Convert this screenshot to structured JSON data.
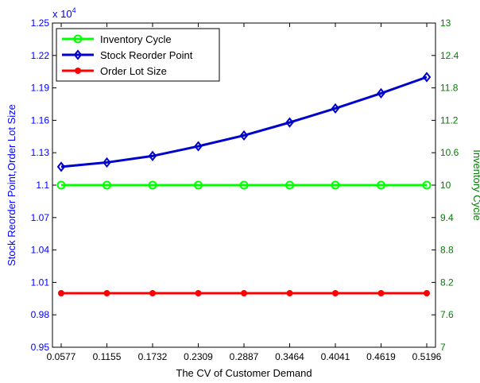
{
  "chart_data": {
    "type": "line",
    "xlabel": "The CV of Customer Demand",
    "ylabel_left": "Stock Reorder Point,Order Lot Size",
    "ylabel_right": "Inventory Cycle",
    "left_exponent_label": "x 10",
    "left_exponent_power": "4",
    "x_ticks": [
      "0.0577",
      "0.1155",
      "0.1732",
      "0.2309",
      "0.2887",
      "0.3464",
      "0.4041",
      "0.4619",
      "0.5196"
    ],
    "x": [
      0.0577,
      0.1155,
      0.1732,
      0.2309,
      0.2887,
      0.3464,
      0.4041,
      0.4619,
      0.5196
    ],
    "left_axis": {
      "range": [
        0.95,
        1.25
      ],
      "ticks": [
        "0.95",
        "0.98",
        "1.01",
        "1.04",
        "1.07",
        "1.1",
        "1.13",
        "1.16",
        "1.19",
        "1.22",
        "1.25"
      ],
      "color": "#0000ff"
    },
    "right_axis": {
      "range": [
        7,
        13
      ],
      "ticks": [
        "7",
        "7.6",
        "8.2",
        "8.8",
        "9.4",
        "10",
        "10.6",
        "11.2",
        "11.8",
        "12.4",
        "13"
      ],
      "color": "#008000"
    },
    "series": [
      {
        "name": "Inventory Cycle",
        "axis": "right",
        "color": "#00ff00",
        "marker": "circle",
        "values": [
          10,
          10,
          10,
          10,
          10,
          10,
          10,
          10,
          10
        ]
      },
      {
        "name": "Stock Reorder Point",
        "axis": "left",
        "color": "#0000cc",
        "marker": "diamond",
        "values": [
          1.117,
          1.121,
          1.127,
          1.136,
          1.146,
          1.158,
          1.171,
          1.185,
          1.2
        ]
      },
      {
        "name": "Order Lot Size",
        "axis": "left",
        "color": "#ff0000",
        "marker": "dot",
        "values": [
          1.0,
          1.0,
          1.0,
          1.0,
          1.0,
          1.0,
          1.0,
          1.0,
          1.0
        ]
      }
    ],
    "legend_position": "top-left",
    "grid": false
  }
}
